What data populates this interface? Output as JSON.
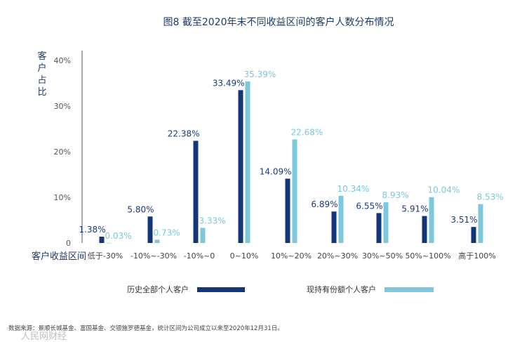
{
  "chart_data": {
    "type": "bar",
    "title": "图8   截至2020年末不同收益区间的客户人数分布情况",
    "ylabel": "客户占比",
    "xlabel": "客户收益区间",
    "ylim": [
      0,
      40
    ],
    "yticks": [
      "0",
      "10%",
      "20%",
      "30%",
      "40%"
    ],
    "ytick_values": [
      0,
      10,
      20,
      30,
      40
    ],
    "categories": [
      "低于-30%",
      "-10%~-30%",
      "-10%~0",
      "0~10%",
      "10%~20%",
      "20%~30%",
      "30%~50%",
      "50%~100%",
      "高于100%"
    ],
    "series": [
      {
        "name": "历史全部个人客户",
        "color": "#13357a",
        "values": [
          1.38,
          5.8,
          22.38,
          33.49,
          14.09,
          6.89,
          6.55,
          5.91,
          3.51
        ],
        "labels": [
          "1.38%",
          "5.80%",
          "22.38%",
          "33.49%",
          "14.09%",
          "6.89%",
          "6.55%",
          "5.91%",
          "3.51%"
        ]
      },
      {
        "name": "现持有份额个人客户",
        "color": "#7ec8dd",
        "values": [
          0.03,
          0.73,
          3.33,
          35.39,
          22.68,
          10.34,
          8.93,
          10.04,
          8.53
        ],
        "labels": [
          "0.03%",
          "0.73%",
          "3.33%",
          "35.39%",
          "22.68%",
          "10.34%",
          "8.93%",
          "10.04%",
          "8.53%"
        ]
      }
    ],
    "legend_position": "bottom",
    "grid": false
  },
  "footer": {
    "source": "数据来源：景顺长城基金、富国基金、交银施罗德基金，统计区间为公司成立以来至2020年12月31日。",
    "watermark": "人民网财经"
  }
}
